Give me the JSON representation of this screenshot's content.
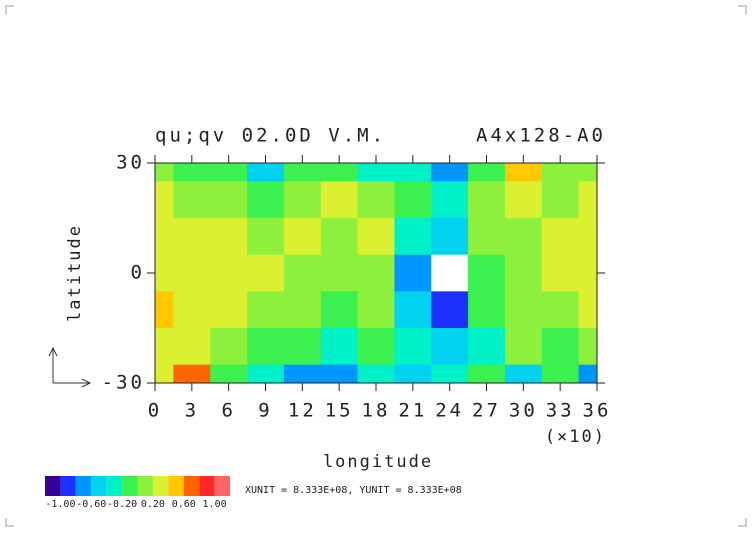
{
  "chart_data": {
    "type": "contour",
    "title": "qu;qv 02.0D V.M.",
    "title_right": "A4x128-A0",
    "x_label": "longitude",
    "y_label": "latitude",
    "x_multiplier": "(×10)",
    "xlim": [
      0,
      36
    ],
    "ylim": [
      -30,
      30
    ],
    "xticks": [
      0,
      3,
      6,
      9,
      12,
      15,
      18,
      21,
      24,
      27,
      30,
      33,
      36
    ],
    "yticks": [
      -30,
      0,
      30
    ],
    "x": [
      0,
      3,
      6,
      9,
      12,
      15,
      18,
      21,
      24,
      27,
      30,
      33,
      36
    ],
    "y": [
      30,
      20,
      10,
      0,
      -10,
      -20,
      -30
    ],
    "z": [
      [
        0.1,
        -0.2,
        -0.1,
        -0.6,
        -0.2,
        -0.1,
        -0.3,
        -0.3,
        -0.8,
        -0.2,
        0.4,
        0.1,
        0.1
      ],
      [
        0.2,
        0.1,
        0.1,
        -0.1,
        0.1,
        0.2,
        0.0,
        -0.1,
        -0.3,
        0.0,
        0.3,
        0.1,
        0.2
      ],
      [
        0.2,
        0.3,
        0.2,
        0.1,
        0.2,
        0.1,
        0.2,
        -0.3,
        -0.5,
        0.0,
        0.1,
        0.2,
        0.3
      ],
      [
        0.3,
        0.2,
        0.3,
        0.2,
        0.1,
        0.1,
        0.0,
        -0.8,
        -1.3,
        -0.1,
        0.1,
        0.2,
        0.2
      ],
      [
        0.4,
        0.2,
        0.2,
        0.1,
        0.0,
        -0.1,
        0.0,
        -0.6,
        -0.9,
        -0.2,
        0.1,
        0.1,
        0.2
      ],
      [
        0.3,
        0.3,
        0.1,
        -0.1,
        -0.2,
        -0.3,
        -0.1,
        -0.3,
        -0.6,
        -0.3,
        0.0,
        -0.1,
        0.0
      ],
      [
        0.2,
        0.6,
        -0.2,
        -0.3,
        -0.8,
        -0.7,
        -0.4,
        -0.5,
        -0.4,
        -0.2,
        -0.6,
        -0.2,
        -0.7
      ]
    ],
    "levels": [
      -1.2,
      -1.0,
      -0.8,
      -0.6,
      -0.4,
      -0.2,
      0.0,
      0.2,
      0.4,
      0.6,
      0.8,
      1.0,
      1.2
    ],
    "colors": [
      "#3a0096",
      "#1e32ff",
      "#0096ff",
      "#00d2f0",
      "#00f0c8",
      "#3cf050",
      "#8cf03c",
      "#dcf032",
      "#ffc800",
      "#ff6400",
      "#ff2828",
      "#ff6464"
    ],
    "colorbar_ticks": [
      {
        "value": -1.0,
        "label": "-1.00"
      },
      {
        "value": -0.6,
        "label": "-0.60"
      },
      {
        "value": -0.2,
        "label": "-0.20"
      },
      {
        "value": 0.2,
        "label": "0.20"
      },
      {
        "value": 0.6,
        "label": "0.60"
      },
      {
        "value": 1.0,
        "label": "1.00"
      }
    ],
    "note": "XUNIT = 8.333E+08, YUNIT = 8.333E+08"
  }
}
